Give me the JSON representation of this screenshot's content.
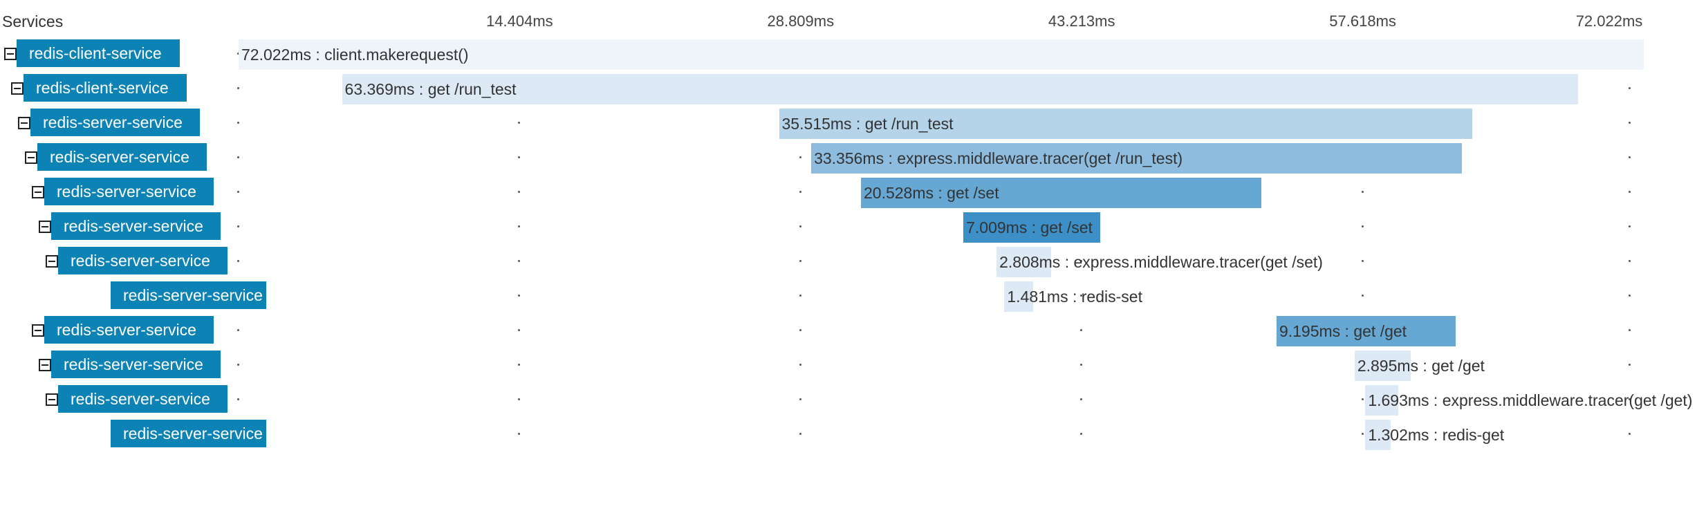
{
  "header": {
    "services_label": "Services"
  },
  "timeline": {
    "total_ms": 72.022,
    "ticks": [
      "14.404ms",
      "28.809ms",
      "43.213ms",
      "57.618ms",
      "72.022ms"
    ],
    "tick_values_ms": [
      14.404,
      28.809,
      43.213,
      57.618,
      72.022
    ]
  },
  "colors": {
    "service_bg": "#0c83b4",
    "depth_shades": [
      "#eef4fa",
      "#dde9f4",
      "#b5d3e9",
      "#8dbcdf",
      "#66a7d3",
      "#3c8fc7"
    ]
  },
  "spans": [
    {
      "service": "redis-client-service",
      "depth": 0,
      "collapsible": true,
      "start_ms": 0.0,
      "duration_ms": 72.022,
      "label": "72.022ms : client.makerequest()"
    },
    {
      "service": "redis-client-service",
      "depth": 1,
      "collapsible": true,
      "start_ms": 5.3,
      "duration_ms": 63.369,
      "label": "63.369ms : get /run_test"
    },
    {
      "service": "redis-server-service",
      "depth": 2,
      "collapsible": true,
      "start_ms": 27.7,
      "duration_ms": 35.515,
      "label": "35.515ms : get /run_test"
    },
    {
      "service": "redis-server-service",
      "depth": 3,
      "collapsible": true,
      "start_ms": 29.35,
      "duration_ms": 33.356,
      "label": "33.356ms : express.middleware.tracer(get /run_test)"
    },
    {
      "service": "redis-server-service",
      "depth": 4,
      "collapsible": true,
      "start_ms": 31.9,
      "duration_ms": 20.528,
      "label": "20.528ms : get /set"
    },
    {
      "service": "redis-server-service",
      "depth": 5,
      "collapsible": true,
      "start_ms": 37.15,
      "duration_ms": 7.009,
      "label": "7.009ms : get /set"
    },
    {
      "service": "redis-server-service",
      "depth": 6,
      "collapsible": true,
      "start_ms": 38.85,
      "duration_ms": 2.808,
      "label": "2.808ms : express.middleware.tracer(get /set)"
    },
    {
      "service": "redis-server-service",
      "depth": 7,
      "collapsible": false,
      "start_ms": 39.25,
      "duration_ms": 1.481,
      "label": "1.481ms : redis-set"
    },
    {
      "service": "redis-server-service",
      "depth": 4,
      "collapsible": true,
      "start_ms": 53.2,
      "duration_ms": 9.195,
      "label": "9.195ms : get /get"
    },
    {
      "service": "redis-server-service",
      "depth": 5,
      "collapsible": true,
      "start_ms": 57.2,
      "duration_ms": 2.895,
      "label": "2.895ms : get /get"
    },
    {
      "service": "redis-server-service",
      "depth": 6,
      "collapsible": true,
      "start_ms": 57.75,
      "duration_ms": 1.693,
      "label": "1.693ms : express.middleware.tracer(get /get)"
    },
    {
      "service": "redis-server-service",
      "depth": 7,
      "collapsible": false,
      "start_ms": 57.75,
      "duration_ms": 1.302,
      "label": "1.302ms : redis-get"
    }
  ]
}
